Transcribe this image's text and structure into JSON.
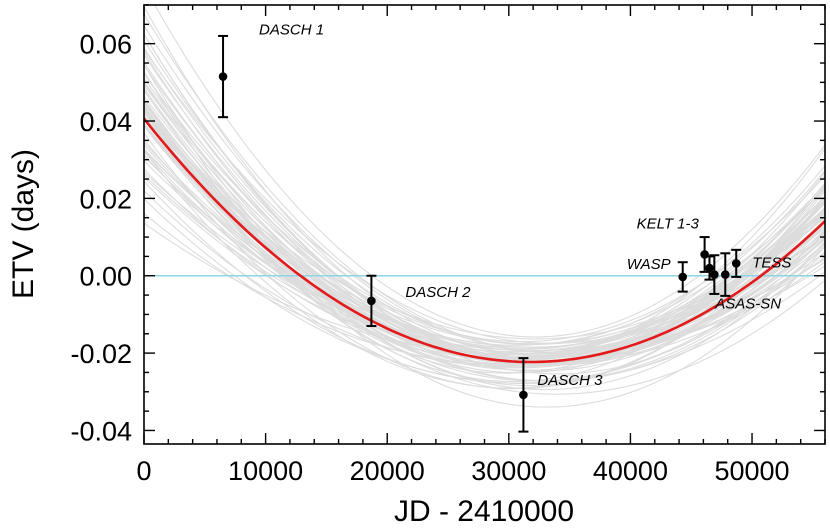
{
  "chart_data": {
    "type": "scatter",
    "title": "",
    "xlabel": "JD - 2410000",
    "ylabel": "ETV (days)",
    "xlim": [
      0,
      56000
    ],
    "ylim": [
      -0.0435,
      0.07
    ],
    "x_ticks": [
      0,
      10000,
      20000,
      30000,
      40000,
      50000
    ],
    "x_tick_labels": [
      "0",
      "10000",
      "20000",
      "30000",
      "40000",
      "50000"
    ],
    "y_ticks": [
      0.06,
      0.04,
      0.02,
      0.0,
      -0.02,
      -0.04
    ],
    "y_tick_labels": [
      "0.06",
      "0.04",
      "0.02",
      "0.00",
      "-0.02",
      "-0.04"
    ],
    "grid": false,
    "reference_line": {
      "y": 0.0,
      "color": "#8fd3e6"
    },
    "colors": {
      "best_fit": "#e31a1c",
      "samples": "#dcdcdc",
      "points": "#000000"
    },
    "best_fit": {
      "name": "best-fit quadratic",
      "vertex_x": 31800,
      "vertex_y": -0.0223,
      "curvature": 6.22e-11
    },
    "sample_curves": {
      "name": "posterior samples",
      "count": 70
    },
    "series": [
      {
        "name": "ETV measurements",
        "points": [
          {
            "x": 6500,
            "y": 0.0515,
            "err": 0.0105,
            "label": "DASCH 1"
          },
          {
            "x": 18700,
            "y": -0.0065,
            "err": 0.0065,
            "label": "DASCH 2"
          },
          {
            "x": 31200,
            "y": -0.0308,
            "err": 0.0095,
            "label": "DASCH 3"
          },
          {
            "x": 44300,
            "y": -0.0003,
            "err": 0.0038,
            "label": "WASP"
          },
          {
            "x": 46100,
            "y": 0.0055,
            "err": 0.0045,
            "label": "KELT 1-3"
          },
          {
            "x": 46500,
            "y": 0.002,
            "err": 0.003,
            "label": ""
          },
          {
            "x": 46900,
            "y": 0.0003,
            "err": 0.005,
            "label": ""
          },
          {
            "x": 47800,
            "y": 0.0003,
            "err": 0.0055,
            "label": "ASAS-SN"
          },
          {
            "x": 48700,
            "y": 0.0032,
            "err": 0.0035,
            "label": "TESS"
          }
        ]
      }
    ]
  }
}
